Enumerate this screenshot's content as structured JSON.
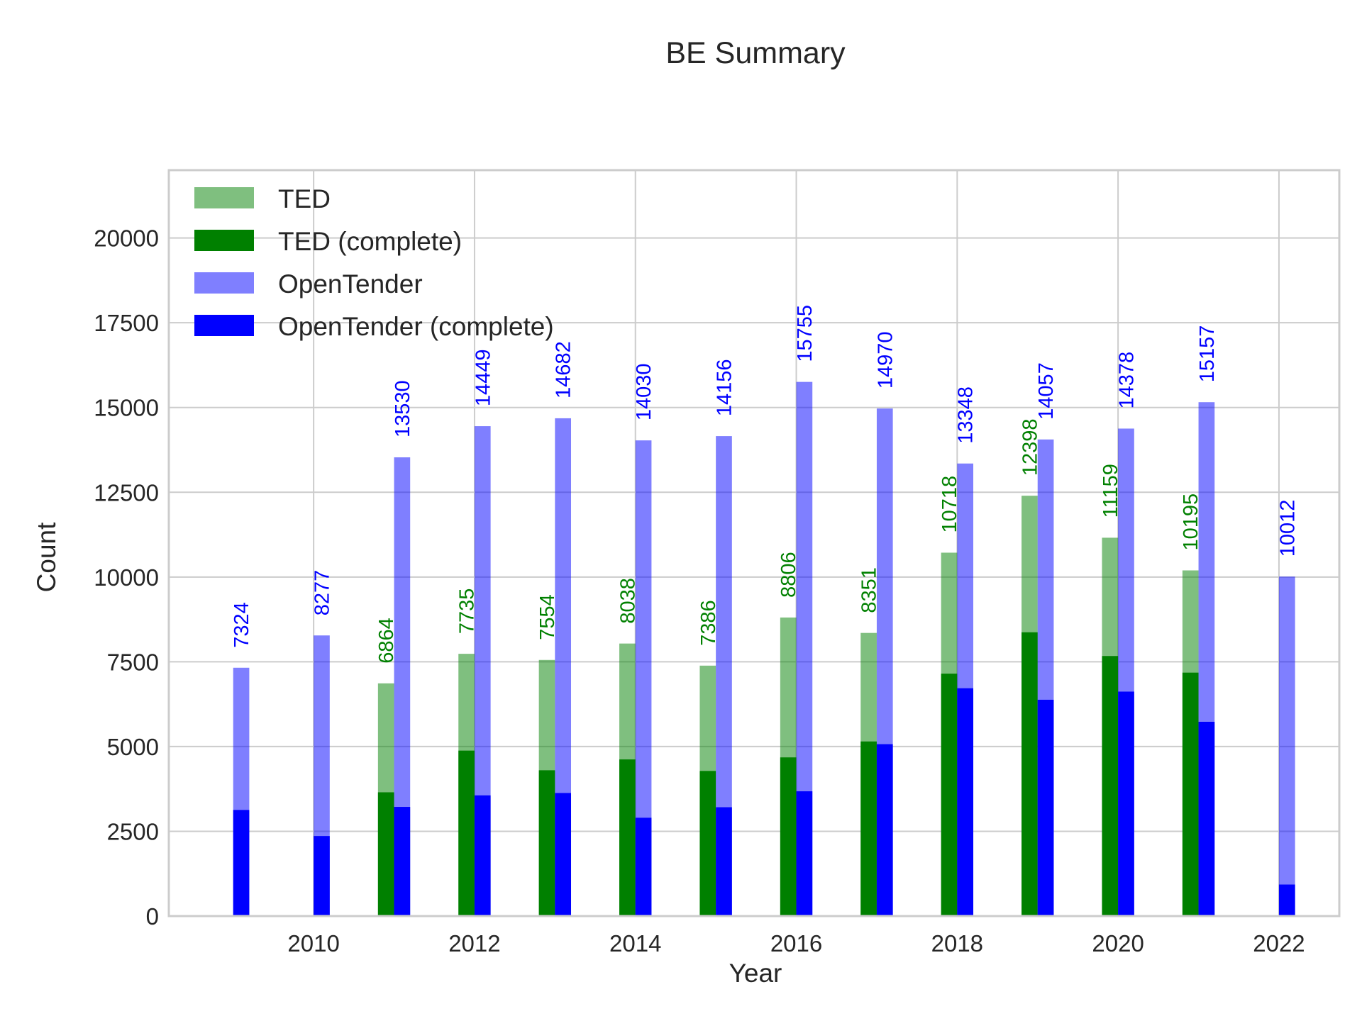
{
  "chart_data": {
    "type": "bar",
    "title": "BE Summary",
    "xlabel": "Year",
    "ylabel": "Count",
    "xlim": [
      2008.2,
      2022.75
    ],
    "ylim": [
      0,
      22000
    ],
    "x_ticks": [
      2010,
      2012,
      2014,
      2016,
      2018,
      2020,
      2022
    ],
    "y_ticks": [
      0,
      2500,
      5000,
      7500,
      10000,
      12500,
      15000,
      17500,
      20000
    ],
    "grid": true,
    "legend_position": "top-left",
    "colors": {
      "ted": "#008000",
      "opentender": "#0000ff"
    },
    "series": [
      {
        "name": "TED",
        "key": "ted",
        "opacity": 0.5,
        "labeled": true,
        "points": [
          {
            "x": 2011,
            "y": 6864
          },
          {
            "x": 2012,
            "y": 7735
          },
          {
            "x": 2013,
            "y": 7554
          },
          {
            "x": 2014,
            "y": 8038
          },
          {
            "x": 2015,
            "y": 7386
          },
          {
            "x": 2016,
            "y": 8806
          },
          {
            "x": 2017,
            "y": 8351
          },
          {
            "x": 2018,
            "y": 10718
          },
          {
            "x": 2019,
            "y": 12398
          },
          {
            "x": 2020,
            "y": 11159
          },
          {
            "x": 2021,
            "y": 10195
          }
        ]
      },
      {
        "name": "TED (complete)",
        "key": "ted",
        "opacity": 1,
        "labeled": false,
        "points": [
          {
            "x": 2011,
            "y": 3650
          },
          {
            "x": 2012,
            "y": 4880
          },
          {
            "x": 2013,
            "y": 4300
          },
          {
            "x": 2014,
            "y": 4620
          },
          {
            "x": 2015,
            "y": 4280
          },
          {
            "x": 2016,
            "y": 4680
          },
          {
            "x": 2017,
            "y": 5150
          },
          {
            "x": 2018,
            "y": 7150
          },
          {
            "x": 2019,
            "y": 8370
          },
          {
            "x": 2020,
            "y": 7670
          },
          {
            "x": 2021,
            "y": 7180
          }
        ]
      },
      {
        "name": "OpenTender",
        "key": "opentender",
        "opacity": 0.5,
        "labeled": true,
        "points": [
          {
            "x": 2009,
            "y": 7324
          },
          {
            "x": 2010,
            "y": 8277
          },
          {
            "x": 2011,
            "y": 13530
          },
          {
            "x": 2012,
            "y": 14449
          },
          {
            "x": 2013,
            "y": 14682
          },
          {
            "x": 2014,
            "y": 14030
          },
          {
            "x": 2015,
            "y": 14156
          },
          {
            "x": 2016,
            "y": 15755
          },
          {
            "x": 2017,
            "y": 14970
          },
          {
            "x": 2018,
            "y": 13348
          },
          {
            "x": 2019,
            "y": 14057
          },
          {
            "x": 2020,
            "y": 14378
          },
          {
            "x": 2021,
            "y": 15157
          },
          {
            "x": 2022,
            "y": 10012
          }
        ]
      },
      {
        "name": "OpenTender (complete)",
        "key": "opentender",
        "opacity": 1,
        "labeled": false,
        "points": [
          {
            "x": 2009,
            "y": 3130
          },
          {
            "x": 2010,
            "y": 2360
          },
          {
            "x": 2011,
            "y": 3220
          },
          {
            "x": 2012,
            "y": 3560
          },
          {
            "x": 2013,
            "y": 3630
          },
          {
            "x": 2014,
            "y": 2900
          },
          {
            "x": 2015,
            "y": 3210
          },
          {
            "x": 2016,
            "y": 3680
          },
          {
            "x": 2017,
            "y": 5070
          },
          {
            "x": 2018,
            "y": 6720
          },
          {
            "x": 2019,
            "y": 6380
          },
          {
            "x": 2020,
            "y": 6620
          },
          {
            "x": 2021,
            "y": 5730
          },
          {
            "x": 2022,
            "y": 930
          }
        ]
      }
    ]
  }
}
